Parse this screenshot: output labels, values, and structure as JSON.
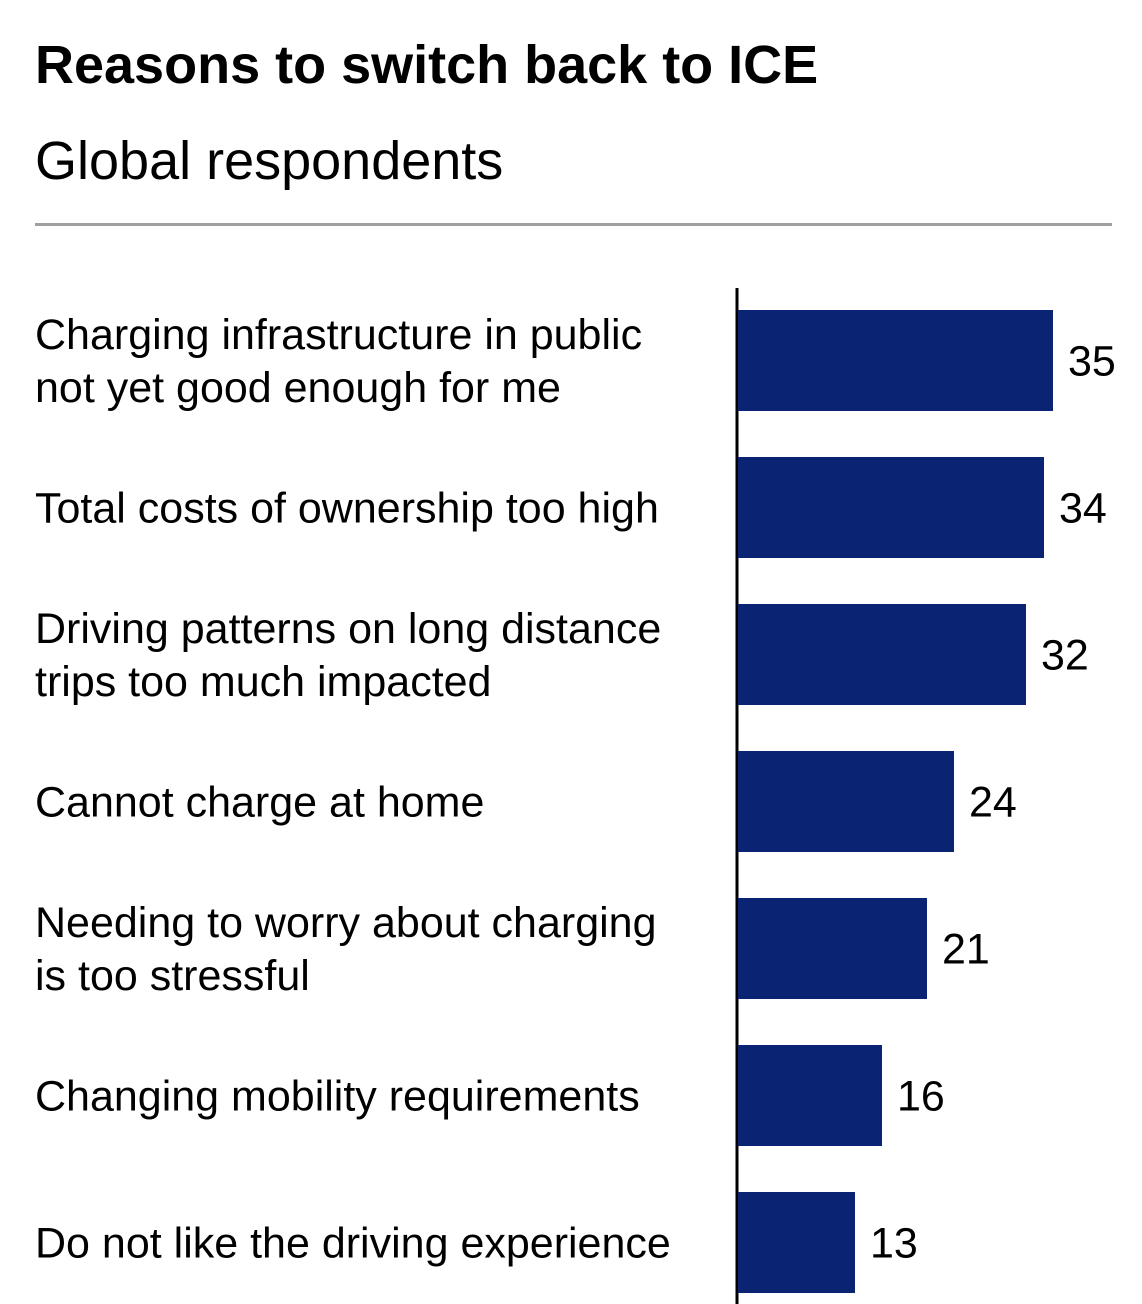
{
  "header": {
    "title": "Reasons to switch back to ICE",
    "subtitle": "Global respondents"
  },
  "colors": {
    "bar": "#0b2373",
    "axis": "#000000"
  },
  "chart_data": {
    "type": "bar",
    "orientation": "horizontal",
    "title": "Reasons to switch back to ICE",
    "subtitle": "Global respondents",
    "categories": [
      "Charging infrastructure in public not yet good enough for me",
      "Total costs of ownership too high",
      "Driving patterns on long distance trips too much impacted",
      "Cannot charge at home",
      "Needing to worry about charging is too stressful",
      "Changing mobility requirements",
      "Do not like the driving experience"
    ],
    "category_lines": [
      [
        "Charging infrastructure in public",
        "not yet good enough for me"
      ],
      [
        "Total costs of ownership too high"
      ],
      [
        "Driving patterns on long distance",
        "trips too much impacted"
      ],
      [
        "Cannot charge at home"
      ],
      [
        "Needing to worry about charging",
        "is too stressful"
      ],
      [
        "Changing mobility requirements"
      ],
      [
        "Do not like the driving experience"
      ]
    ],
    "values": [
      35,
      34,
      32,
      24,
      21,
      16,
      13
    ],
    "data_labels": true,
    "grid": false,
    "legend": "none"
  }
}
